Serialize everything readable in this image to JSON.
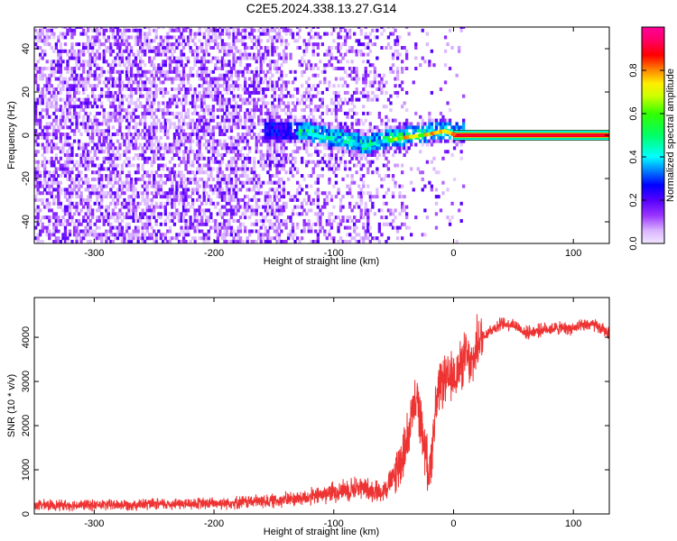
{
  "title": "C2E5.2024.338.13.27.G14",
  "chart_data": [
    {
      "type": "heatmap",
      "xlabel": "Height of straight line (km)",
      "ylabel": "Frequency (Hz)",
      "xlim": [
        -350,
        130
      ],
      "ylim": [
        -50,
        50
      ],
      "xticks": [
        -300,
        -200,
        -100,
        0,
        100
      ],
      "yticks": [
        -40,
        -20,
        0,
        20,
        40
      ],
      "colorbar": {
        "label": "Normalized spectral amplitude",
        "ticks": [
          0.0,
          0.2,
          0.4,
          0.6,
          0.8
        ],
        "range": [
          0,
          1
        ],
        "colors": [
          "#f2e6ff",
          "#d9b3ff",
          "#9933ff",
          "#5500ff",
          "#0000ff",
          "#0088ff",
          "#00ffff",
          "#00ff66",
          "#33ff00",
          "#ccff00",
          "#ffee00",
          "#ff8800",
          "#ff0000",
          "#ff0066",
          "#ff0099"
        ]
      },
      "signal_track": [
        {
          "x": -150,
          "y": 1.5
        },
        {
          "x": -120,
          "y": 0.5
        },
        {
          "x": -90,
          "y": -3
        },
        {
          "x": -75,
          "y": -5
        },
        {
          "x": -60,
          "y": -3
        },
        {
          "x": -40,
          "y": -1
        },
        {
          "x": -20,
          "y": 0.5
        },
        {
          "x": -8,
          "y": 2
        },
        {
          "x": 0,
          "y": 0.5
        },
        {
          "x": 130,
          "y": 0
        }
      ]
    },
    {
      "type": "line",
      "xlabel": "Height of straight line (km)",
      "ylabel": "SNR (10 * v/v)",
      "xlim": [
        -350,
        130
      ],
      "ylim": [
        0,
        4900
      ],
      "xticks": [
        -300,
        -200,
        -100,
        0,
        100
      ],
      "yticks": [
        0,
        1000,
        2000,
        3000,
        4000
      ],
      "line_color": "#ee3333",
      "series": [
        {
          "x": [
            -350,
            -300,
            -250,
            -200,
            -150,
            -120,
            -100,
            -80,
            -60,
            -50,
            -40,
            -35,
            -30,
            -25,
            -20,
            -15,
            -10,
            -5,
            0,
            5,
            10,
            15,
            20,
            30,
            40,
            50,
            60,
            80,
            100,
            115,
            130
          ],
          "y": [
            200,
            200,
            220,
            240,
            300,
            380,
            500,
            600,
            500,
            800,
            1500,
            2200,
            2600,
            1600,
            900,
            2400,
            3000,
            3000,
            3100,
            3300,
            3600,
            3300,
            3900,
            4150,
            4300,
            4300,
            4100,
            4200,
            4200,
            4300,
            4100
          ]
        }
      ]
    }
  ]
}
